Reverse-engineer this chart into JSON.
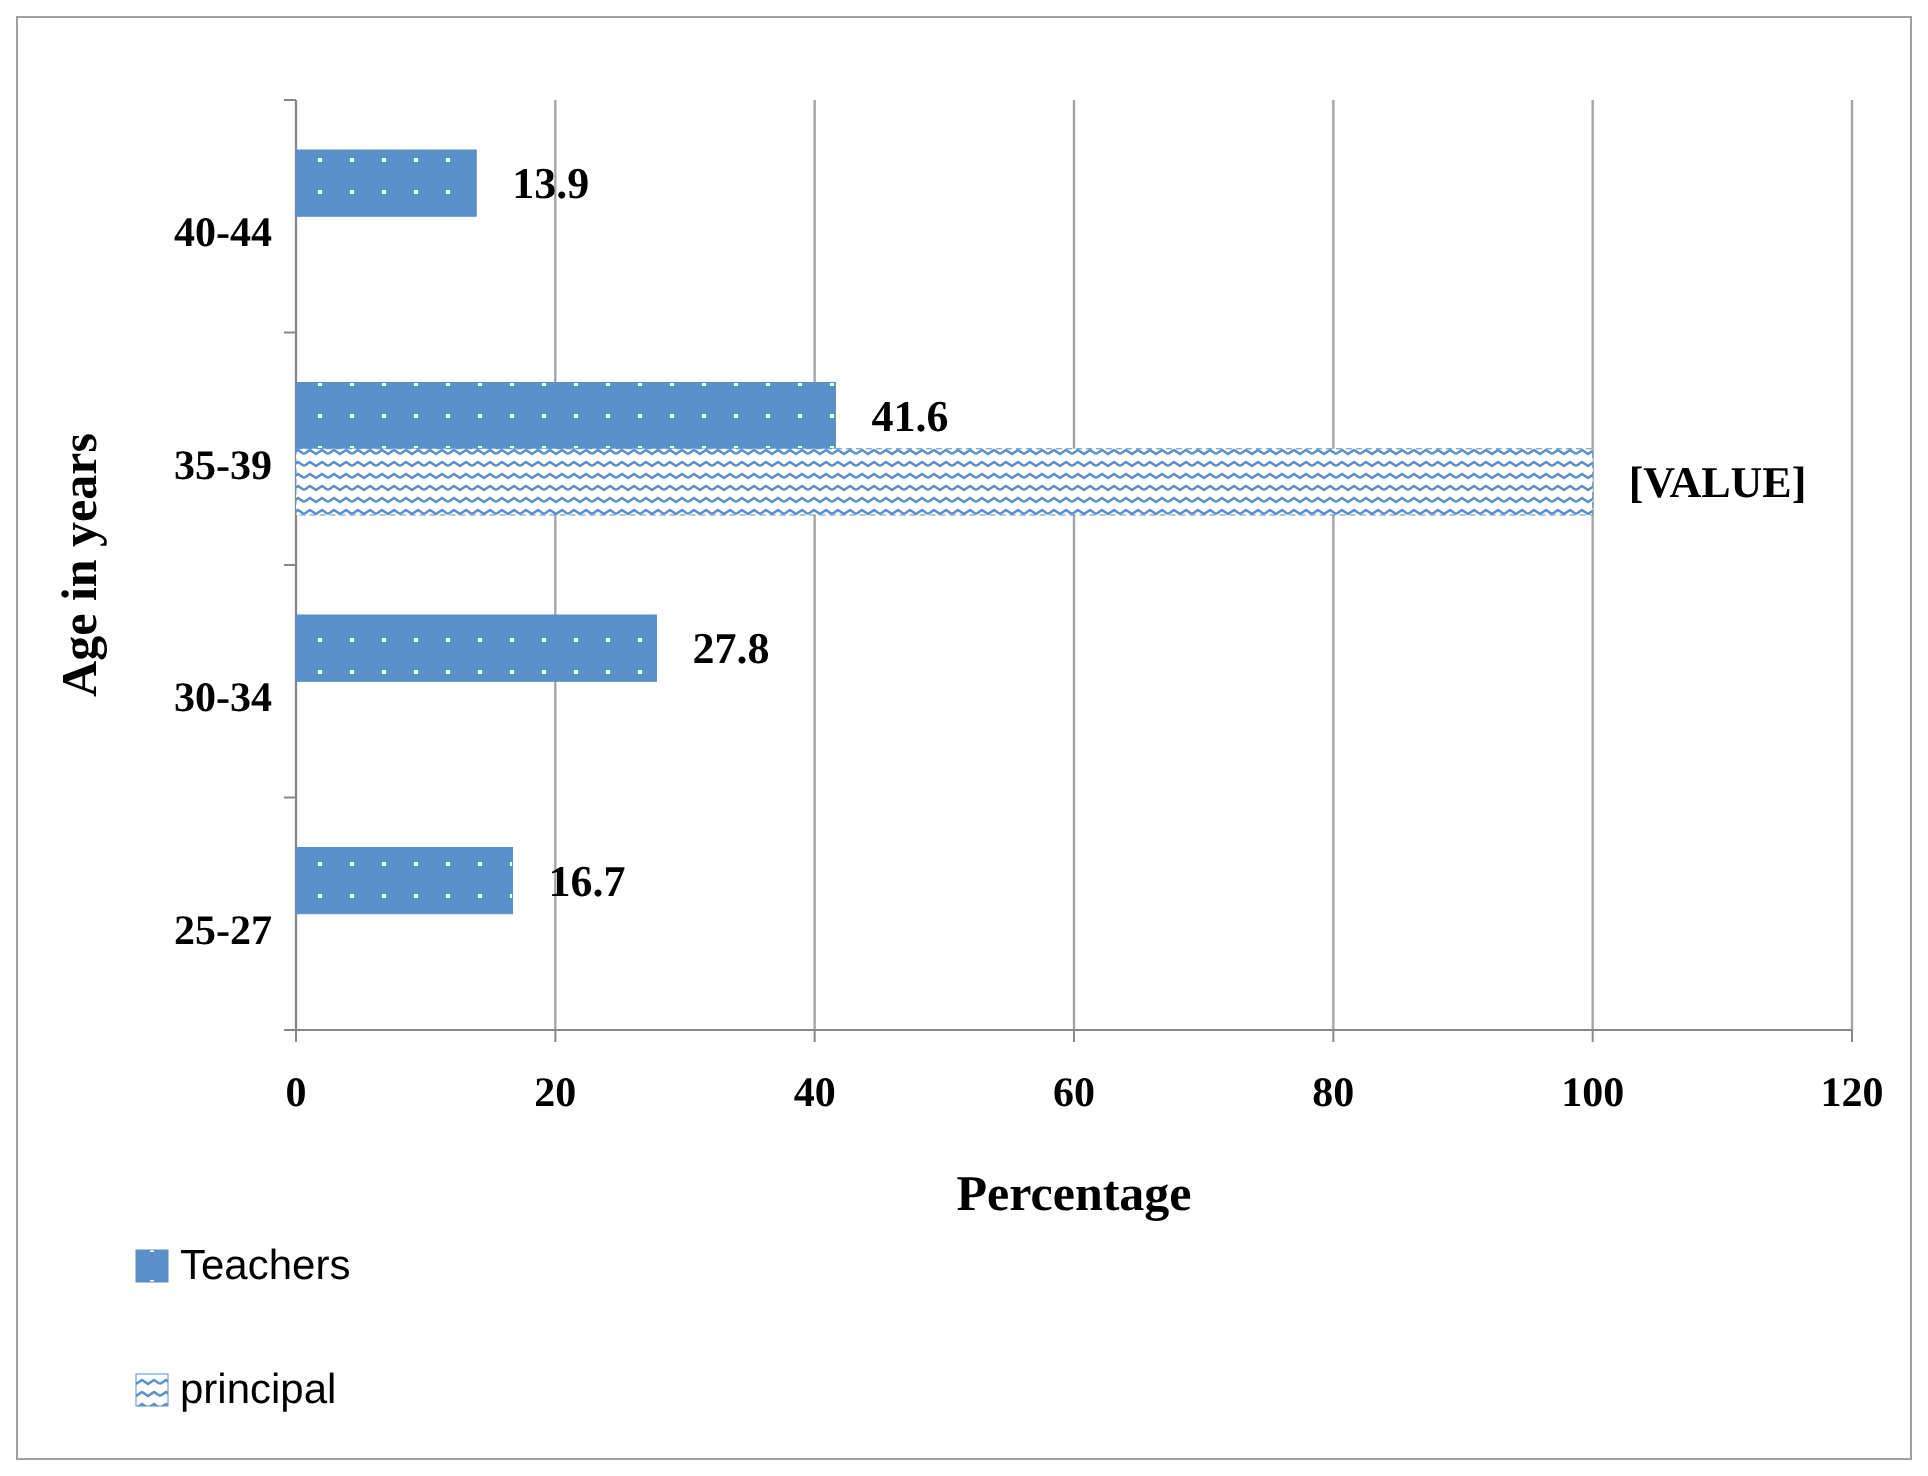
{
  "chart_data": {
    "type": "bar",
    "orientation": "horizontal",
    "xlabel": "Percentage",
    "ylabel": "Age in years",
    "categories": [
      "40-44",
      "35-39",
      "30-34",
      "25-27"
    ],
    "series": [
      {
        "name": "Teachers",
        "color": "#5b8fc9",
        "values": [
          13.9,
          41.6,
          27.8,
          16.7
        ],
        "value_labels": [
          "13.9",
          "41.6",
          "27.8",
          "16.7"
        ]
      },
      {
        "name": "principal",
        "color": "#5b8fc9",
        "values": [
          null,
          100,
          null,
          null
        ],
        "value_labels": [
          null,
          "[VALUE]",
          null,
          null
        ]
      }
    ],
    "xlim": [
      0,
      120
    ],
    "xticks": [
      0,
      20,
      40,
      60,
      80,
      100,
      120
    ],
    "grid": "x",
    "legend": "bottom left"
  }
}
